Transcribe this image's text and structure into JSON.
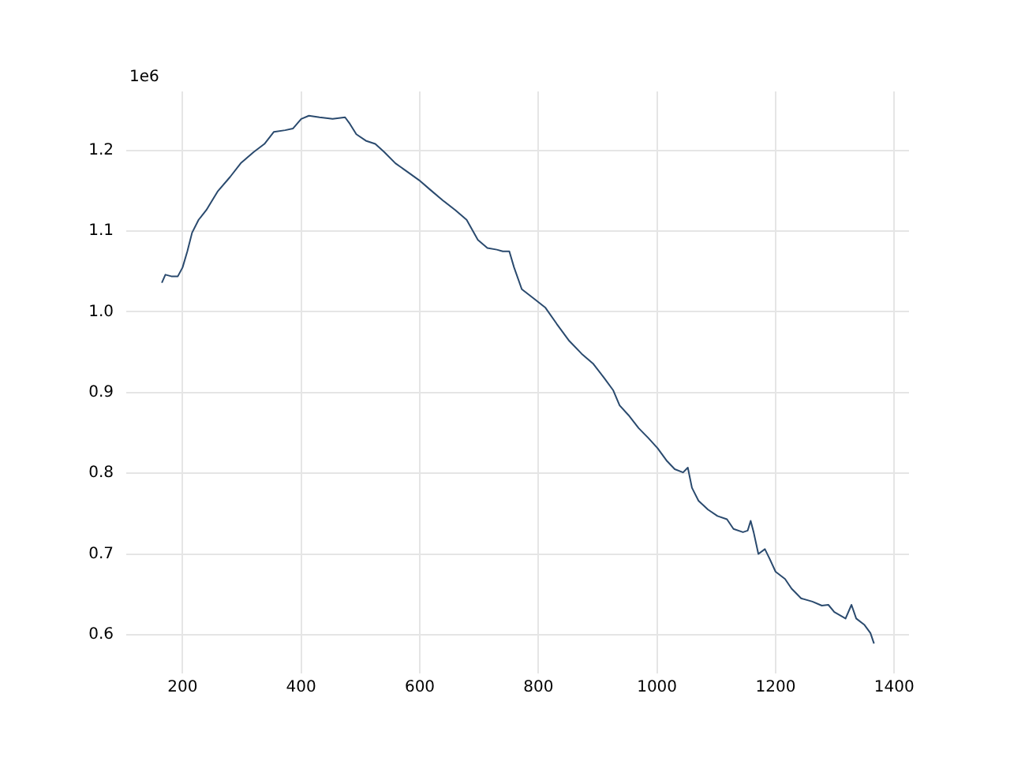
{
  "chart_data": {
    "type": "line",
    "annotations": [
      "1e6"
    ],
    "x": [
      165,
      171,
      181,
      192,
      200,
      208,
      216,
      227,
      240,
      259,
      280,
      298,
      320,
      338,
      354,
      373,
      386,
      400,
      413,
      431,
      453,
      474,
      482,
      493,
      509,
      525,
      540,
      559,
      580,
      599,
      618,
      639,
      660,
      679,
      698,
      714,
      730,
      740,
      751,
      759,
      772,
      793,
      812,
      831,
      852,
      873,
      892,
      910,
      926,
      937,
      952,
      969,
      985,
      1001,
      1017,
      1030,
      1044,
      1052,
      1059,
      1070,
      1086,
      1102,
      1118,
      1129,
      1145,
      1153,
      1158,
      1163,
      1171,
      1182,
      1190,
      1200,
      1216,
      1227,
      1243,
      1262,
      1278,
      1289,
      1299,
      1318,
      1328,
      1336,
      1350,
      1360,
      1366
    ],
    "series": [
      {
        "color": "#2a4a6e",
        "values": [
          1.036,
          1.046,
          1.044,
          1.044,
          1.055,
          1.075,
          1.098,
          1.114,
          1.126,
          1.149,
          1.167,
          1.184,
          1.198,
          1.208,
          1.223,
          1.225,
          1.227,
          1.239,
          1.243,
          1.241,
          1.239,
          1.241,
          1.233,
          1.22,
          1.212,
          1.208,
          1.198,
          1.184,
          1.173,
          1.163,
          1.151,
          1.138,
          1.126,
          1.114,
          1.089,
          1.079,
          1.077,
          1.075,
          1.075,
          1.055,
          1.028,
          1.016,
          1.005,
          0.985,
          0.964,
          0.948,
          0.936,
          0.919,
          0.903,
          0.884,
          0.872,
          0.856,
          0.844,
          0.831,
          0.815,
          0.805,
          0.801,
          0.807,
          0.782,
          0.766,
          0.755,
          0.747,
          0.743,
          0.731,
          0.727,
          0.729,
          0.741,
          0.727,
          0.7,
          0.706,
          0.694,
          0.678,
          0.669,
          0.657,
          0.645,
          0.641,
          0.636,
          0.637,
          0.628,
          0.62,
          0.637,
          0.62,
          0.612,
          0.602,
          0.589
        ]
      }
    ],
    "xlim": [
      105,
      1425
    ],
    "xticks": [
      200,
      400,
      600,
      800,
      1000,
      1200,
      1400
    ],
    "ylim": [
      0.552,
      1.273
    ],
    "yticks": [
      0.6,
      0.7,
      0.8,
      0.9,
      {
        "value": 1,
        "label": "1.0"
      },
      1.1,
      1.2
    ],
    "grid": true,
    "legend": false,
    "marker": "none",
    "line_style": "solid"
  }
}
